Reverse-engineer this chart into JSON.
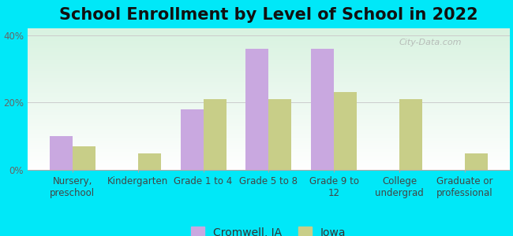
{
  "title": "School Enrollment by Level of School in 2022",
  "categories": [
    "Nursery,\npreschool",
    "Kindergarten",
    "Grade 1 to 4",
    "Grade 5 to 8",
    "Grade 9 to\n12",
    "College\nundergrad",
    "Graduate or\nprofessional"
  ],
  "cromwell": [
    10,
    0,
    18,
    36,
    36,
    0,
    0
  ],
  "iowa": [
    7,
    5,
    21,
    21,
    23,
    21,
    5
  ],
  "cromwell_color": "#c9a8e0",
  "iowa_color": "#c8ce88",
  "ylim": [
    0,
    42
  ],
  "yticks": [
    0,
    20,
    40
  ],
  "ytick_labels": [
    "0%",
    "20%",
    "40%"
  ],
  "legend_cromwell": "Cromwell, IA",
  "legend_iowa": "Iowa",
  "bar_width": 0.35,
  "bg_color_fig": "#00e8f8",
  "watermark": "City-Data.com",
  "title_fontsize": 15,
  "tick_fontsize": 8.5,
  "legend_fontsize": 10
}
